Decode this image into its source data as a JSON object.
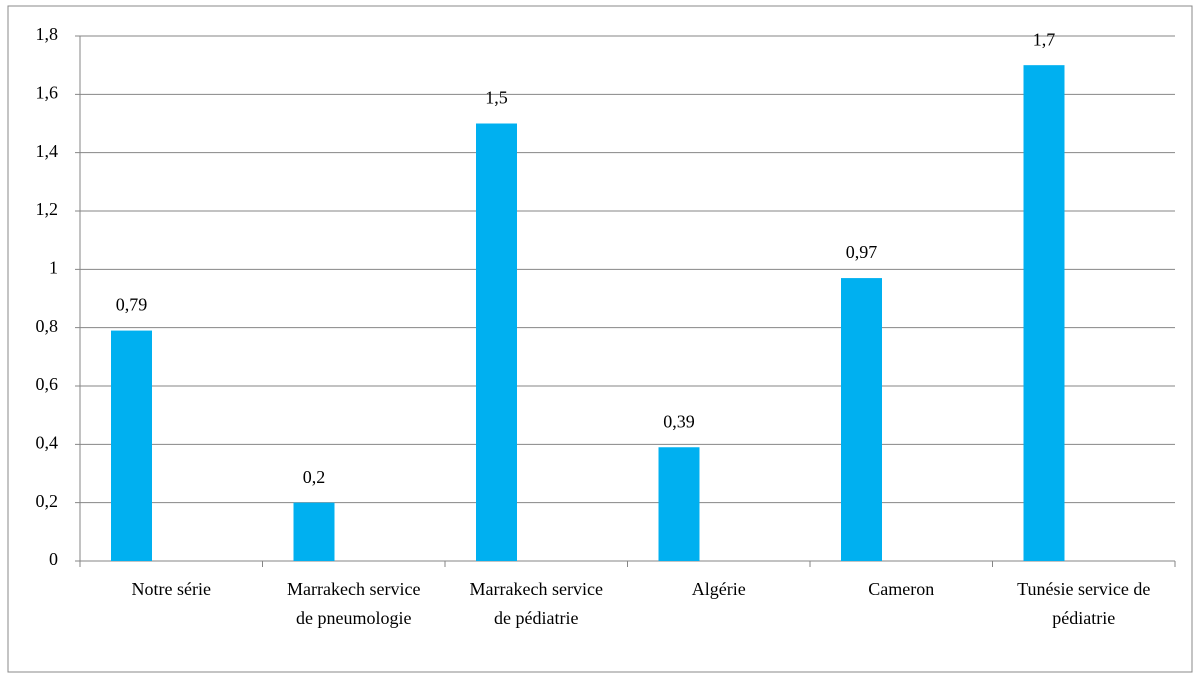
{
  "chart_data": {
    "type": "bar",
    "categories": [
      "Notre série",
      "Marrakech service de pneumologie",
      "Marrakech service de pédiatrie",
      "Algérie",
      "Cameron",
      "Tunésie service de pédiatrie"
    ],
    "values": [
      0.79,
      0.2,
      1.5,
      0.39,
      0.97,
      1.7
    ],
    "value_labels": [
      "0,79",
      "0,2",
      "1,5",
      "0,39",
      "0,97",
      "1,7"
    ],
    "color": "#00b0f0",
    "ylim": [
      0,
      1.8
    ],
    "yticks": [
      0,
      {
        "value": 0.2,
        "label": "0,2"
      },
      {
        "value": 0.4,
        "label": "0,4"
      },
      {
        "value": 0.6,
        "label": "0,6"
      },
      {
        "value": 0.8,
        "label": "0,8"
      },
      1,
      {
        "value": 1.2,
        "label": "1,2"
      },
      {
        "value": 1.4,
        "label": "1,4"
      },
      {
        "value": 1.6,
        "label": "1,6"
      },
      {
        "value": 1.8,
        "label": "1,8"
      }
    ],
    "grid": true
  }
}
